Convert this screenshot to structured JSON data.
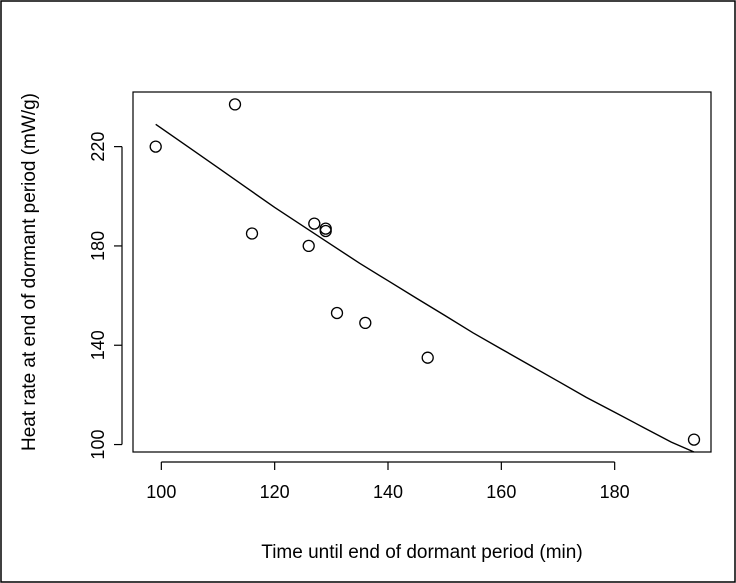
{
  "chart_data": {
    "type": "scatter",
    "title": "",
    "xlabel": "Time until end of dormant period (min)",
    "ylabel": "Heat rate at end of dormant period (mW/g)",
    "xlim": [
      95,
      197
    ],
    "ylim": [
      97,
      242
    ],
    "x_ticks": [
      100,
      120,
      140,
      160,
      180
    ],
    "y_ticks": [
      100,
      140,
      180,
      220
    ],
    "grid": false,
    "legend": "none",
    "points": [
      {
        "x": 99,
        "y": 220
      },
      {
        "x": 113,
        "y": 237
      },
      {
        "x": 116,
        "y": 185
      },
      {
        "x": 126,
        "y": 180
      },
      {
        "x": 127,
        "y": 189
      },
      {
        "x": 129,
        "y": 187
      },
      {
        "x": 129,
        "y": 186
      },
      {
        "x": 131,
        "y": 153
      },
      {
        "x": 136,
        "y": 149
      },
      {
        "x": 147,
        "y": 135
      },
      {
        "x": 194,
        "y": 102
      }
    ],
    "fit_curve": {
      "x": [
        99,
        105,
        110,
        115,
        120,
        125,
        130,
        135,
        140,
        145,
        150,
        155,
        160,
        165,
        170,
        175,
        180,
        185,
        190,
        194
      ],
      "y": [
        229,
        219.5,
        211.5,
        203.5,
        195.5,
        188,
        180.5,
        173,
        166,
        159,
        152,
        145,
        138.5,
        132,
        125.5,
        119,
        113,
        107,
        101,
        97
      ]
    }
  }
}
